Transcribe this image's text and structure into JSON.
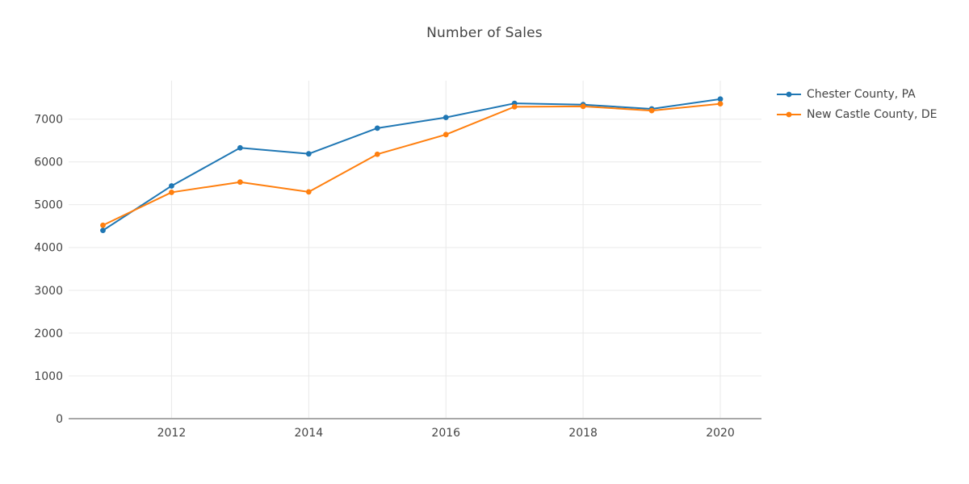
{
  "title": "Number of Sales",
  "chart_data": {
    "type": "line",
    "x": [
      2011,
      2012,
      2013,
      2014,
      2015,
      2016,
      2017,
      2018,
      2019,
      2020
    ],
    "series": [
      {
        "name": "Chester County, PA",
        "color": "#1f77b4",
        "values": [
          4400,
          5440,
          6330,
          6190,
          6790,
          7040,
          7370,
          7340,
          7240,
          7470
        ]
      },
      {
        "name": "New Castle County, DE",
        "color": "#ff7f0e",
        "values": [
          4520,
          5290,
          5530,
          5300,
          6180,
          6640,
          7290,
          7300,
          7200,
          7360
        ]
      }
    ],
    "title": "Number of Sales",
    "xlabel": "",
    "ylabel": "",
    "x_ticks": [
      2012,
      2014,
      2016,
      2018,
      2020
    ],
    "y_ticks": [
      0,
      1000,
      2000,
      3000,
      4000,
      5000,
      6000,
      7000
    ],
    "xlim": [
      2010.5,
      2020.6
    ],
    "ylim": [
      0,
      7900
    ],
    "grid": true,
    "legend_position": "right",
    "marker": "circle"
  },
  "style": {
    "grid_color": "#e9e9e9",
    "axis_line_color": "#a8a8a8",
    "text_color": "#444444",
    "background": "#ffffff"
  }
}
